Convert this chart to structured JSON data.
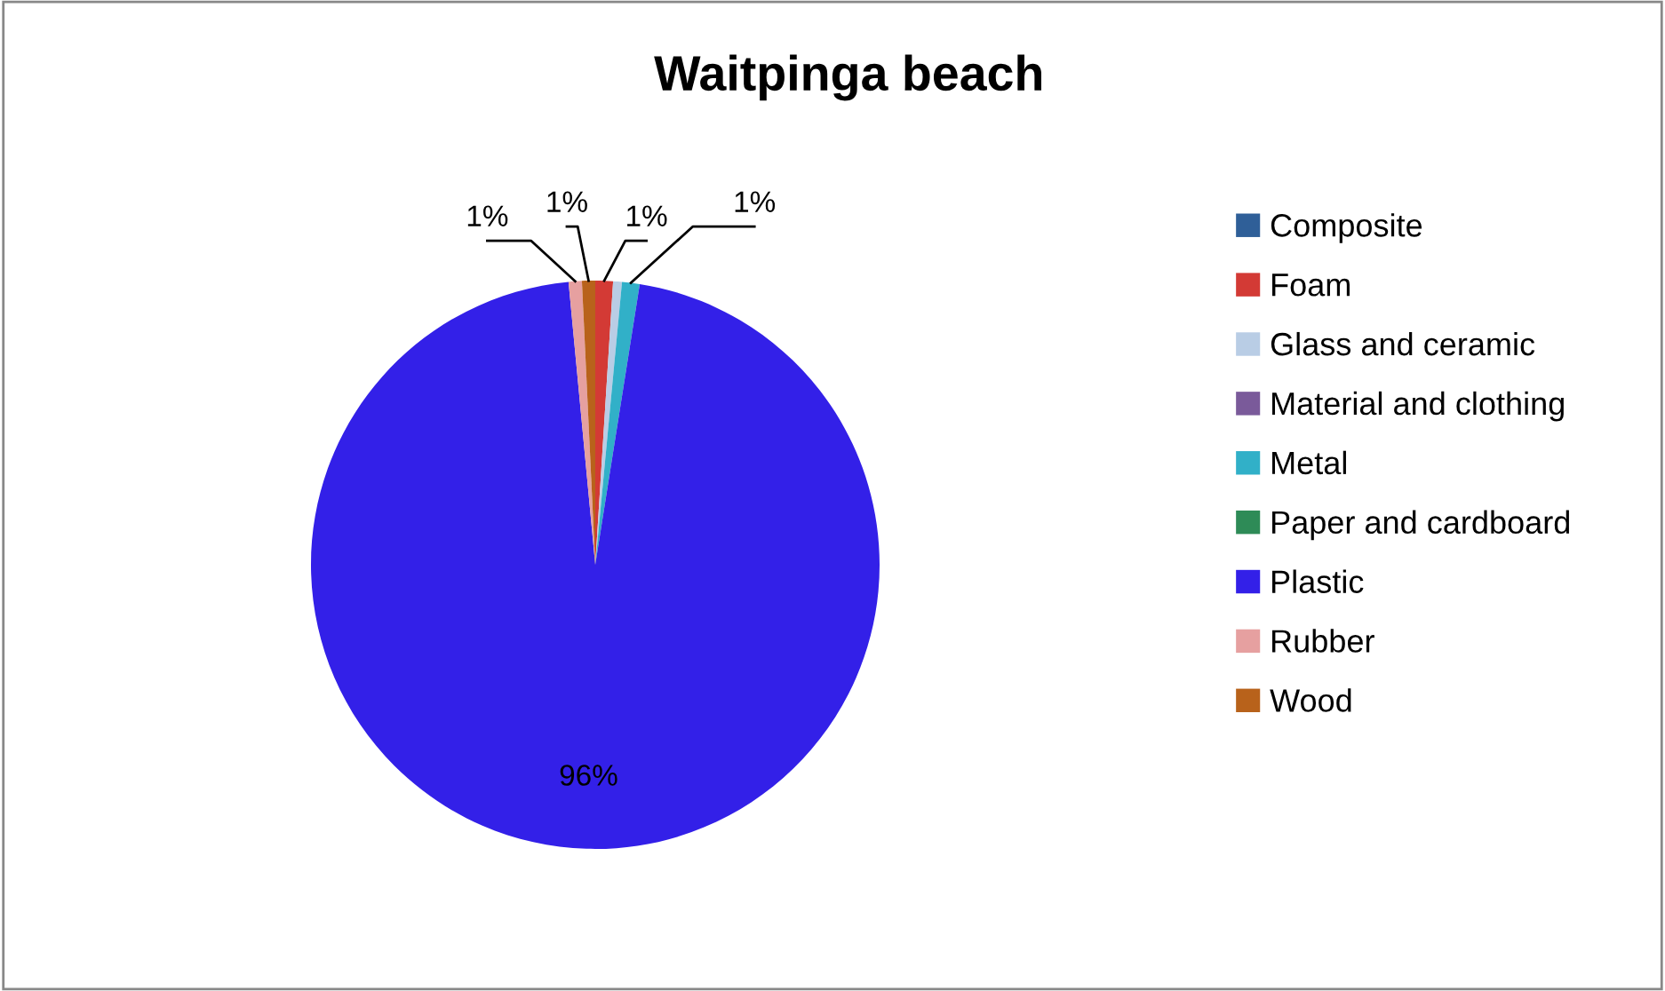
{
  "chart_data": {
    "type": "pie",
    "title": "Waitpinga beach",
    "categories": [
      "Composite",
      "Foam",
      "Glass and ceramic",
      "Material and clothing",
      "Metal",
      "Paper and cardboard",
      "Plastic",
      "Rubber",
      "Wood"
    ],
    "values": [
      0,
      1,
      0.5,
      0,
      1,
      0,
      96,
      0.75,
      0.75
    ],
    "value_labels": [
      null,
      "1%",
      null,
      null,
      "1%",
      null,
      "96%",
      "1%",
      "1%"
    ],
    "colors": [
      "#2f5f98",
      "#d33a35",
      "#b9cde5",
      "#7a5a9a",
      "#31b0c8",
      "#2e8b57",
      "#3320e8",
      "#e6a0a0",
      "#b8621b"
    ],
    "legend": "right"
  }
}
